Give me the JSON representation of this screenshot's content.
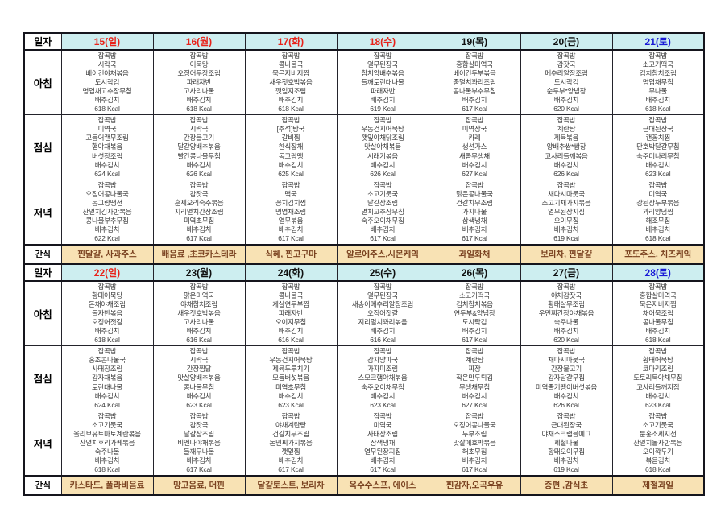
{
  "document": {
    "type": "weekly-meal-plan-table",
    "title": ""
  },
  "colors": {
    "header_bg": "#cdeef0",
    "snack_bg": "#f8e2b4",
    "snack_text": "#7a4220",
    "date_red": "#e8231a",
    "date_black": "#111111",
    "date_blue": "#1a1ad6",
    "grid_border": "#23232b"
  },
  "labels": {
    "date": "일자",
    "breakfast": "아침",
    "lunch": "점심",
    "dinner": "저녁",
    "snack": "간식"
  },
  "weeks": [
    {
      "dates": [
        {
          "text": "15(일)",
          "color": "#e8231a"
        },
        {
          "text": "16(월)",
          "color": "#e8231a"
        },
        {
          "text": "17(화)",
          "color": "#e8231a"
        },
        {
          "text": "18(수)",
          "color": "#e8231a"
        },
        {
          "text": "19(목)",
          "color": "#111111"
        },
        {
          "text": "20(금)",
          "color": "#111111"
        },
        {
          "text": "21(토)",
          "color": "#1a1ad6"
        }
      ],
      "meals": [
        {
          "label": "아침",
          "cells": [
            "잡곡밥\n시락국\n베이컨야채볶음\n도시락김\n명엽채고추장무침\n배추김치\n618  Kcal",
            "잡곡밥\n어묵탕\n오징어무장조림\n파래자반\n고사리나물\n배추김치\n618  Kcal",
            "잡곡밥\n콩나물국\n묵은지비지찜\n새우젓호박볶음\n깻잎지조림\n배추김치\n618  Kcal",
            "잡곡밥\n열무된장국\n참치양배추볶음\n들깨토란대나물\n파래자반\n배추김치\n619  Kcal",
            "잡곡밥\n홍합살미역국\n베이컨두부볶음\n중멸치꽈리조림\n콩나물부추무침\n배추김치\n617  Kcal",
            "잡곡밥\n감잣국\n메추리알장조림\n도시락김\n순두부*양념장\n배추김치\n620  Kcal",
            "잡곡밥\n소고기떡국\n김치참치조림\n명엽채무침\n무나물\n배추김치\n618  Kcal"
          ]
        },
        {
          "label": "점심",
          "cells": [
            "잡곡밥\n미역국\n고등어캔무조림\n햄야채볶음\n버섯장조림\n배추김치\n624  Kcal",
            "잡곡밥\n시락국\n간장불고기\n달걀양배추볶음\n빨간콩나물무침\n배추김치\n626  Kcal",
            "잡곡밥\n[추석]탕국\n갈비찜\n한식잡채\n동그랑땡\n배추김치\n625  Kcal",
            "잡곡밥\n우동건지어묵탕\n깻잎야채닭조림\n맛살야채볶음\n시래기볶음\n배추김치\n626  Kcal",
            "잡곡밥\n미역장국\n카레\n생선가스\n새콤무생채\n배추김치\n627  Kcal",
            "잡곡밥\n계란탕\n제육볶음\n양배추쌈*쌈장\n고사리들깨볶음\n배추김치\n626  Kcal",
            "잡곡밥\n근대된장국\n캔꽁치찜\n단호박달걀무침\n숙주미나리무침\n배추김치\n623  Kcal"
          ]
        },
        {
          "label": "저녁",
          "cells": [
            "잡곡밥\n오징어콩나물국\n동그랑땡전\n잔멸치김자반볶음\n콩나물부추무침\n배추김치\n622  Kcal",
            "잡곡밥\n감잣국\n훈제오리숙주볶음\n지리멸치간장조림\n미역초무침\n배추김치\n617  Kcal",
            "잡곡밥\n떡국\n꽁치김치찜\n명엽채조림\n열무볶음\n배추김치\n617  Kcal",
            "잡곡밥\n소고기뭇국\n달걀장조림\n멸치고추장무침\n숙주오이채무침\n배추김치\n617  Kcal",
            "잡곡밥\n맑은콩나물국\n건갈치무조림\n가지나물\n삼색냉채\n배추김치\n617  Kcal",
            "잡곡밥\n채다시마뭇국\n소고기채가지볶음\n열무된장지짐\n오이무침\n배추김치\n619  Kcal",
            "잡곡밥\n미역국\n강된장두부볶음\n꽈리양념찜\n해조무침\n배추김치\n618  Kcal"
          ]
        }
      ],
      "snack": {
        "label": "간식",
        "cells": [
          "찐달걀, 사과주스",
          "배음료 ,초코카스테라",
          "식혜, 찐고구마",
          "알로에주스,시몬케익",
          "과일화채",
          "보리차, 찐달걀",
          "포도주스, 치즈케익"
        ]
      }
    },
    {
      "dates": [
        {
          "text": "22(일)",
          "color": "#e8231a"
        },
        {
          "text": "23(월)",
          "color": "#111111"
        },
        {
          "text": "24(화)",
          "color": "#111111"
        },
        {
          "text": "25(수)",
          "color": "#111111"
        },
        {
          "text": "26(목)",
          "color": "#111111"
        },
        {
          "text": "27(금)",
          "color": "#111111"
        },
        {
          "text": "28(토)",
          "color": "#1a1ad6"
        }
      ],
      "meals": [
        {
          "label": "아침",
          "cells": [
            "잡곡밥\n황태어묵탕\n돈채야채조림\n돌자반볶음\n오징어젓갈\n배추김치\n618  Kcal",
            "잡곡밥\n맑은미역국\n야채참치조림\n새우젓호박볶음\n고사리나물\n배추김치\n616  Kcal",
            "잡곡밥\n콩나물국\n게살연두부찜\n파래자반\n오이지무침\n배추김치\n616  Kcal",
            "잡곡밥\n열무된장국\n새송이메추리알장조림\n오징어젓갈\n지리멸치꽈리볶음\n배추김치\n616  Kcal",
            "잡곡밥\n소고기떡국\n김치참치볶음\n연두부&양념장\n도시락김\n배추김치\n617  Kcal",
            "잡곡밥\n야채감잣국\n황태살무조림\n우민찌간장야채볶음\n숙주나물\n배추김치\n620  Kcal",
            "잡곡밥\n홍합살미역국\n묵은지비지찜\n채어묵조림\n콩나물무침\n배추김치\n618  Kcal"
          ]
        },
        {
          "label": "점심",
          "cells": [
            "잡곡밥\n홍초콩나물국\n사태장조림\n감자채볶음\n토란대나물\n배추김치\n624  Kcal",
            "잡곡밥\n시락국\n간장찜닭\n맛살양배추볶음\n콩나물무침\n배추김치\n623  Kcal",
            "잡곡밥\n우동건지어묵탕\n제육두루치기\n모듬버섯볶음\n미역초무침\n배추김치\n623  Kcal",
            "잡곡밥\n감자양파국\n가자미조림\n스모크햄야채볶음\n숙주오이채무침\n배추김치\n623  Kcal",
            "잡곡밥\n계란탕\n짜장\n작은만두튀김\n무생채무침\n배추김치\n627  Kcal",
            "잡곡밥\n채다시마뭇국\n간장불고기\n감자달걀무침\n미역줄기팽이버섯볶음\n배추김치\n626  Kcal",
            "잡곡밥\n황태어묵탕\n코다리조림\n도토리묵야채무침\n고사리들깨지짐\n배추김치\n623  Kcal"
          ]
        },
        {
          "label": "저녁",
          "cells": [
            "잡곡밥\n소고기뭇국\n올리브유토마토계란볶음\n잔멸치후리가케볶음\n숙주나물\n배추김치\n618  Kcal",
            "잡곡밥\n감잣국\n달걀장조림\n비엔나야채볶음\n들깨무나물\n배추김치\n617  Kcal",
            "잡곡밥\n야채계란탕\n건갈치무조림\n돈민찌가지볶음\n깻잎찜\n배추김치\n617  Kcal",
            "잡곡밥\n미역국\n사태장조림\n삼색냉채\n열무된장지짐\n배추김치\n617  Kcal",
            "잡곡밥\n오징어콩나물국\n두부조림\n맛살애호박볶음\n해초무침\n배추김치\n617  Kcal",
            "잡곡밥\n근대된장국\n야채스크램블에그\n제철나물\n황태오이무침\n배추김치\n619  Kcal",
            "잡곡밥\n소고기뭇국\n분홍소세지전\n잔멸치돌자반볶음\n오이깍두기\n볶음김치\n618  Kcal"
          ]
        }
      ],
      "snack": {
        "label": "간식",
        "cells": [
          "카스타드, 폴라비음료",
          "망고음료, 머핀",
          "달걀토스트, 보리차",
          "옥수수스프, 에이스",
          "찐감자,오곡우유",
          "증편 ,감식초",
          "제철과일"
        ]
      }
    }
  ]
}
